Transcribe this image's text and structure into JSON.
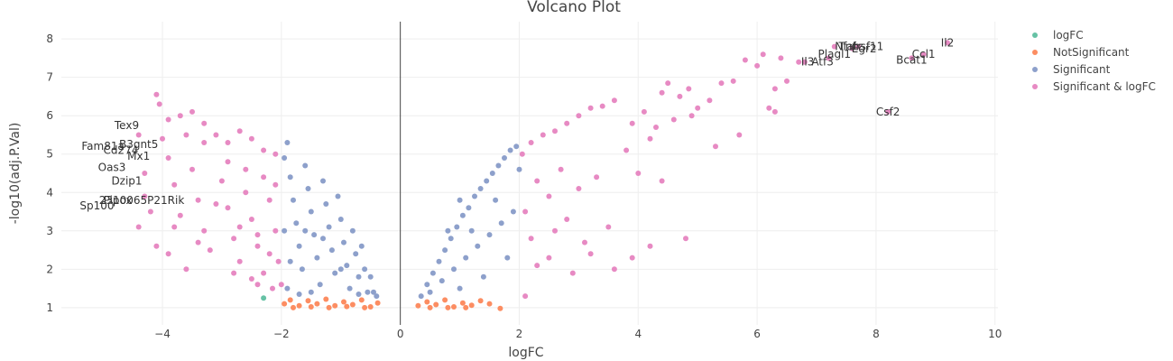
{
  "chart_data": {
    "type": "scatter",
    "title": "Volcano Plot",
    "xlabel": "logFC",
    "ylabel": "-log10(adj.P.Val)",
    "xlim": [
      -5.7,
      10.05
    ],
    "ylim": [
      0.55,
      8.45
    ],
    "xticks": [
      -4,
      -2,
      0,
      2,
      4,
      6,
      8,
      10
    ],
    "xtick_labels": [
      "−4",
      "−2",
      "0",
      "2",
      "4",
      "6",
      "8",
      "10"
    ],
    "yticks": [
      1,
      2,
      3,
      4,
      5,
      6,
      7,
      8
    ],
    "grid": true,
    "vertical_reference_line_x": 0,
    "legend_position": "top-right",
    "series": [
      {
        "name": "logFC",
        "color": "#66c2a5",
        "points": [
          [
            -2.3,
            1.25
          ]
        ]
      },
      {
        "name": "NotSignificant",
        "color": "#fc8d62",
        "points": [
          [
            -1.95,
            1.1
          ],
          [
            -1.85,
            1.2
          ],
          [
            -1.7,
            1.05
          ],
          [
            -1.55,
            1.18
          ],
          [
            -1.4,
            1.1
          ],
          [
            -1.25,
            1.22
          ],
          [
            -1.1,
            1.05
          ],
          [
            -0.95,
            1.15
          ],
          [
            -0.8,
            1.08
          ],
          [
            -0.65,
            1.2
          ],
          [
            -0.5,
            1.02
          ],
          [
            -0.38,
            1.12
          ],
          [
            -1.8,
            1.0
          ],
          [
            -1.5,
            1.02
          ],
          [
            -1.2,
            1.0
          ],
          [
            -0.9,
            1.03
          ],
          [
            -0.6,
            1.0
          ],
          [
            0.3,
            1.05
          ],
          [
            0.45,
            1.15
          ],
          [
            0.6,
            1.08
          ],
          [
            0.75,
            1.2
          ],
          [
            0.9,
            1.02
          ],
          [
            1.05,
            1.12
          ],
          [
            1.2,
            1.06
          ],
          [
            1.35,
            1.18
          ],
          [
            1.5,
            1.1
          ],
          [
            1.68,
            0.98
          ],
          [
            0.5,
            1.0
          ],
          [
            0.8,
            1.0
          ],
          [
            1.1,
            1.0
          ]
        ]
      },
      {
        "name": "Significant",
        "color": "#8da0cb",
        "points": [
          [
            -1.95,
            4.9
          ],
          [
            -1.9,
            5.3
          ],
          [
            -1.85,
            4.4
          ],
          [
            -1.8,
            3.8
          ],
          [
            -1.75,
            3.2
          ],
          [
            -1.7,
            2.6
          ],
          [
            -1.65,
            2.0
          ],
          [
            -1.6,
            4.7
          ],
          [
            -1.55,
            4.1
          ],
          [
            -1.5,
            3.5
          ],
          [
            -1.45,
            2.9
          ],
          [
            -1.4,
            2.3
          ],
          [
            -1.35,
            1.6
          ],
          [
            -1.3,
            4.3
          ],
          [
            -1.25,
            3.7
          ],
          [
            -1.2,
            3.1
          ],
          [
            -1.15,
            2.5
          ],
          [
            -1.1,
            1.9
          ],
          [
            -1.05,
            3.9
          ],
          [
            -1.0,
            3.3
          ],
          [
            -0.95,
            2.7
          ],
          [
            -0.9,
            2.1
          ],
          [
            -0.85,
            1.5
          ],
          [
            -0.8,
            3.0
          ],
          [
            -0.75,
            2.4
          ],
          [
            -0.7,
            1.8
          ],
          [
            -0.65,
            2.6
          ],
          [
            -0.6,
            2.0
          ],
          [
            -0.55,
            1.4
          ],
          [
            -0.5,
            1.8
          ],
          [
            -0.45,
            1.4
          ],
          [
            -0.4,
            1.3
          ],
          [
            -1.9,
            1.5
          ],
          [
            -1.7,
            1.35
          ],
          [
            -1.5,
            1.4
          ],
          [
            -1.95,
            3.0
          ],
          [
            -1.85,
            2.2
          ],
          [
            -1.6,
            3.0
          ],
          [
            -1.3,
            2.8
          ],
          [
            -1.0,
            2.0
          ],
          [
            -0.7,
            1.35
          ],
          [
            0.35,
            1.3
          ],
          [
            0.45,
            1.6
          ],
          [
            0.55,
            1.9
          ],
          [
            0.65,
            2.2
          ],
          [
            0.75,
            2.5
          ],
          [
            0.85,
            2.8
          ],
          [
            0.95,
            3.1
          ],
          [
            1.05,
            3.4
          ],
          [
            1.15,
            3.6
          ],
          [
            1.25,
            3.9
          ],
          [
            1.35,
            4.1
          ],
          [
            1.45,
            4.3
          ],
          [
            1.55,
            4.5
          ],
          [
            1.65,
            4.7
          ],
          [
            1.75,
            4.9
          ],
          [
            1.85,
            5.1
          ],
          [
            1.95,
            5.2
          ],
          [
            0.5,
            1.4
          ],
          [
            0.7,
            1.7
          ],
          [
            0.9,
            2.0
          ],
          [
            1.1,
            2.3
          ],
          [
            1.3,
            2.6
          ],
          [
            1.5,
            2.9
          ],
          [
            1.7,
            3.2
          ],
          [
            1.9,
            3.5
          ],
          [
            1.0,
            1.5
          ],
          [
            1.4,
            1.8
          ],
          [
            1.8,
            2.3
          ],
          [
            1.2,
            3.0
          ],
          [
            1.6,
            3.8
          ],
          [
            2.0,
            4.6
          ],
          [
            0.8,
            3.0
          ],
          [
            1.0,
            3.8
          ]
        ]
      },
      {
        "name": "Significant & logFC",
        "color": "#e78ac3",
        "points": [
          [
            -4.1,
            6.55
          ],
          [
            -4.05,
            6.3
          ],
          [
            -3.9,
            5.9
          ],
          [
            -3.7,
            6.0
          ],
          [
            -3.5,
            6.1
          ],
          [
            -3.3,
            5.8
          ],
          [
            -3.1,
            5.5
          ],
          [
            -2.9,
            5.3
          ],
          [
            -2.7,
            5.6
          ],
          [
            -2.5,
            5.4
          ],
          [
            -2.3,
            5.1
          ],
          [
            -2.1,
            5.0
          ],
          [
            -4.3,
            4.5
          ],
          [
            -4.2,
            3.5
          ],
          [
            -4.1,
            2.6
          ],
          [
            -3.9,
            4.9
          ],
          [
            -3.8,
            4.2
          ],
          [
            -3.7,
            3.4
          ],
          [
            -3.5,
            4.6
          ],
          [
            -3.4,
            3.8
          ],
          [
            -3.3,
            3.0
          ],
          [
            -3.2,
            2.5
          ],
          [
            -3.0,
            4.3
          ],
          [
            -2.9,
            3.6
          ],
          [
            -2.8,
            2.8
          ],
          [
            -2.7,
            2.2
          ],
          [
            -2.6,
            4.0
          ],
          [
            -2.5,
            3.3
          ],
          [
            -2.4,
            2.6
          ],
          [
            -2.3,
            1.9
          ],
          [
            -2.2,
            3.8
          ],
          [
            -2.1,
            3.0
          ],
          [
            -2.05,
            2.2
          ],
          [
            -2.0,
            1.6
          ],
          [
            -2.15,
            1.5
          ],
          [
            -2.4,
            1.6
          ],
          [
            -3.6,
            2.0
          ],
          [
            -3.9,
            2.4
          ],
          [
            -4.3,
            3.9
          ],
          [
            -4.4,
            3.1
          ],
          [
            -3.3,
            5.3
          ],
          [
            -2.9,
            4.8
          ],
          [
            -2.6,
            4.6
          ],
          [
            -2.3,
            4.4
          ],
          [
            -2.1,
            4.2
          ],
          [
            -3.6,
            5.5
          ],
          [
            -4.0,
            5.4
          ],
          [
            -4.4,
            5.5
          ],
          [
            -3.1,
            3.7
          ],
          [
            -2.7,
            3.1
          ],
          [
            -2.4,
            2.9
          ],
          [
            -2.2,
            2.4
          ],
          [
            -3.4,
            2.7
          ],
          [
            -3.8,
            3.1
          ],
          [
            -2.8,
            1.9
          ],
          [
            -2.5,
            1.75
          ],
          [
            2.05,
            5.0
          ],
          [
            2.2,
            5.3
          ],
          [
            2.4,
            5.5
          ],
          [
            2.6,
            5.6
          ],
          [
            2.8,
            5.8
          ],
          [
            3.0,
            6.0
          ],
          [
            3.2,
            6.2
          ],
          [
            3.4,
            6.25
          ],
          [
            3.6,
            6.4
          ],
          [
            2.1,
            3.5
          ],
          [
            2.2,
            2.8
          ],
          [
            2.3,
            4.3
          ],
          [
            2.5,
            3.9
          ],
          [
            2.6,
            3.0
          ],
          [
            2.7,
            4.6
          ],
          [
            2.8,
            3.3
          ],
          [
            3.0,
            4.1
          ],
          [
            3.1,
            2.7
          ],
          [
            3.3,
            4.4
          ],
          [
            3.5,
            3.1
          ],
          [
            3.6,
            2.0
          ],
          [
            3.8,
            5.1
          ],
          [
            4.0,
            4.5
          ],
          [
            4.2,
            5.4
          ],
          [
            4.4,
            6.6
          ],
          [
            4.5,
            6.85
          ],
          [
            4.7,
            6.5
          ],
          [
            4.85,
            6.7
          ],
          [
            5.0,
            6.2
          ],
          [
            5.2,
            6.4
          ],
          [
            5.4,
            6.85
          ],
          [
            5.6,
            6.9
          ],
          [
            5.8,
            7.45
          ],
          [
            6.0,
            7.3
          ],
          [
            6.1,
            7.6
          ],
          [
            6.3,
            6.7
          ],
          [
            6.4,
            7.5
          ],
          [
            6.5,
            6.9
          ],
          [
            3.9,
            5.8
          ],
          [
            4.1,
            6.1
          ],
          [
            4.3,
            5.7
          ],
          [
            4.6,
            5.9
          ],
          [
            2.1,
            1.3
          ],
          [
            2.3,
            2.1
          ],
          [
            2.5,
            2.3
          ],
          [
            2.9,
            1.9
          ],
          [
            3.2,
            2.4
          ],
          [
            3.9,
            2.3
          ],
          [
            4.2,
            2.6
          ],
          [
            4.4,
            4.3
          ],
          [
            4.8,
            2.8
          ],
          [
            6.2,
            6.2
          ],
          [
            5.3,
            5.2
          ],
          [
            4.9,
            6.0
          ],
          [
            5.7,
            5.5
          ],
          [
            6.3,
            6.1
          ],
          [
            6.7,
            7.4
          ],
          [
            6.8,
            7.4
          ],
          [
            7.2,
            7.5
          ],
          [
            7.3,
            7.8
          ],
          [
            7.6,
            7.75
          ],
          [
            7.7,
            7.8
          ],
          [
            8.2,
            6.1
          ],
          [
            8.6,
            7.5
          ],
          [
            8.8,
            7.6
          ],
          [
            9.2,
            7.9
          ]
        ]
      }
    ],
    "gene_labels": [
      {
        "text": "Tex9",
        "x": -4.6,
        "y": 5.75
      },
      {
        "text": "B3gnt5",
        "x": -4.4,
        "y": 5.25
      },
      {
        "text": "Fam81a",
        "x": -5.0,
        "y": 5.2
      },
      {
        "text": "Cd274",
        "x": -4.7,
        "y": 5.1
      },
      {
        "text": "Mx1",
        "x": -4.4,
        "y": 4.95
      },
      {
        "text": "Oas3",
        "x": -4.85,
        "y": 4.65
      },
      {
        "text": "Dzip1",
        "x": -4.6,
        "y": 4.3
      },
      {
        "text": "2310065P21Rik",
        "x": -4.35,
        "y": 3.8
      },
      {
        "text": "Pipox",
        "x": -4.75,
        "y": 3.8
      },
      {
        "text": "Sp100",
        "x": -5.1,
        "y": 3.65
      },
      {
        "text": "Il2",
        "x": 9.2,
        "y": 7.9
      },
      {
        "text": "Tnfrsf11",
        "x": 7.75,
        "y": 7.8
      },
      {
        "text": "Nfatc",
        "x": 7.55,
        "y": 7.8
      },
      {
        "text": "Egr2",
        "x": 7.8,
        "y": 7.75
      },
      {
        "text": "Ccl1",
        "x": 8.8,
        "y": 7.6
      },
      {
        "text": "Plagl1",
        "x": 7.3,
        "y": 7.6
      },
      {
        "text": "Bcat1",
        "x": 8.6,
        "y": 7.45
      },
      {
        "text": "Il3",
        "x": 6.85,
        "y": 7.4
      },
      {
        "text": "Atf3",
        "x": 7.1,
        "y": 7.4
      },
      {
        "text": "Csf2",
        "x": 8.2,
        "y": 6.1
      }
    ]
  }
}
